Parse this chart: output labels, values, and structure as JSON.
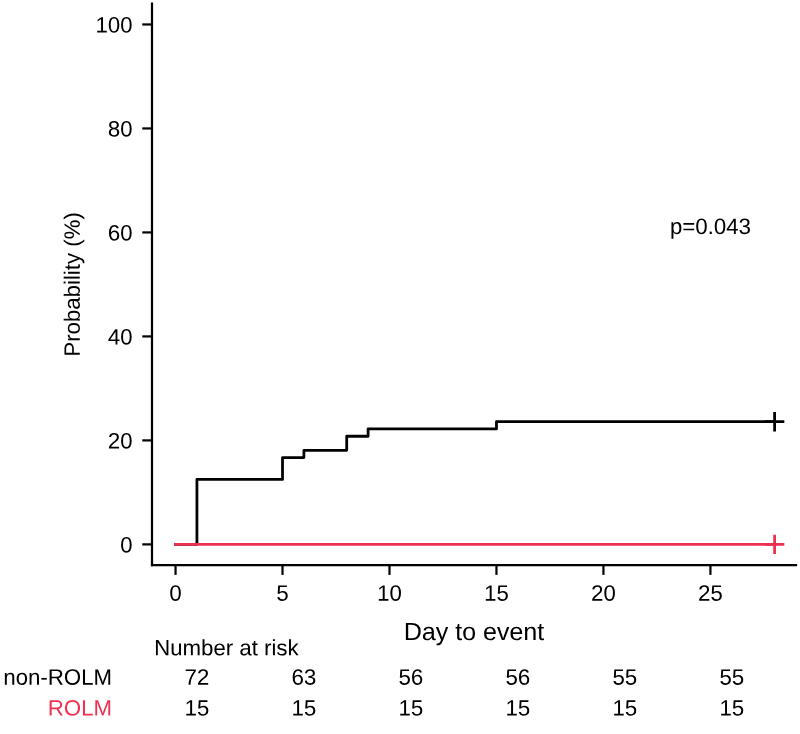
{
  "chart_data": {
    "type": "step",
    "xlabel": "Day to event",
    "ylabel": "Probability (%)",
    "series": [
      {
        "name": "non-ROLM",
        "color": "#000000",
        "x": [
          0,
          1,
          5,
          6,
          8,
          9,
          15,
          28
        ],
        "values": [
          0,
          12.5,
          16.7,
          18.1,
          20.8,
          22.2,
          23.6,
          23.6
        ]
      },
      {
        "name": "ROLM",
        "color": "#f03050",
        "x": [
          0,
          28
        ],
        "values": [
          0,
          0
        ]
      },
      {
        "type": "scatter",
        "marker": "cross",
        "color": "#000000",
        "x": [
          28
        ],
        "values": [
          23.6
        ]
      },
      {
        "type": "scatter",
        "marker": "cross",
        "color": "#f03050",
        "x": [
          28
        ],
        "values": [
          0
        ]
      }
    ],
    "xlim": [
      -1.1,
      29
    ],
    "ylim": [
      -4,
      104
    ],
    "xticks": [
      0,
      5,
      10,
      15,
      20,
      25
    ],
    "yticks": [
      0,
      20,
      40,
      60,
      80,
      100
    ],
    "grid": false,
    "legend": false,
    "line_style": "solid",
    "annotations": [
      "p=0.043",
      "Number at risk",
      "72",
      "63",
      "56",
      "56",
      "55",
      "55",
      "15",
      "15",
      "15",
      "15",
      "15",
      "15"
    ]
  }
}
